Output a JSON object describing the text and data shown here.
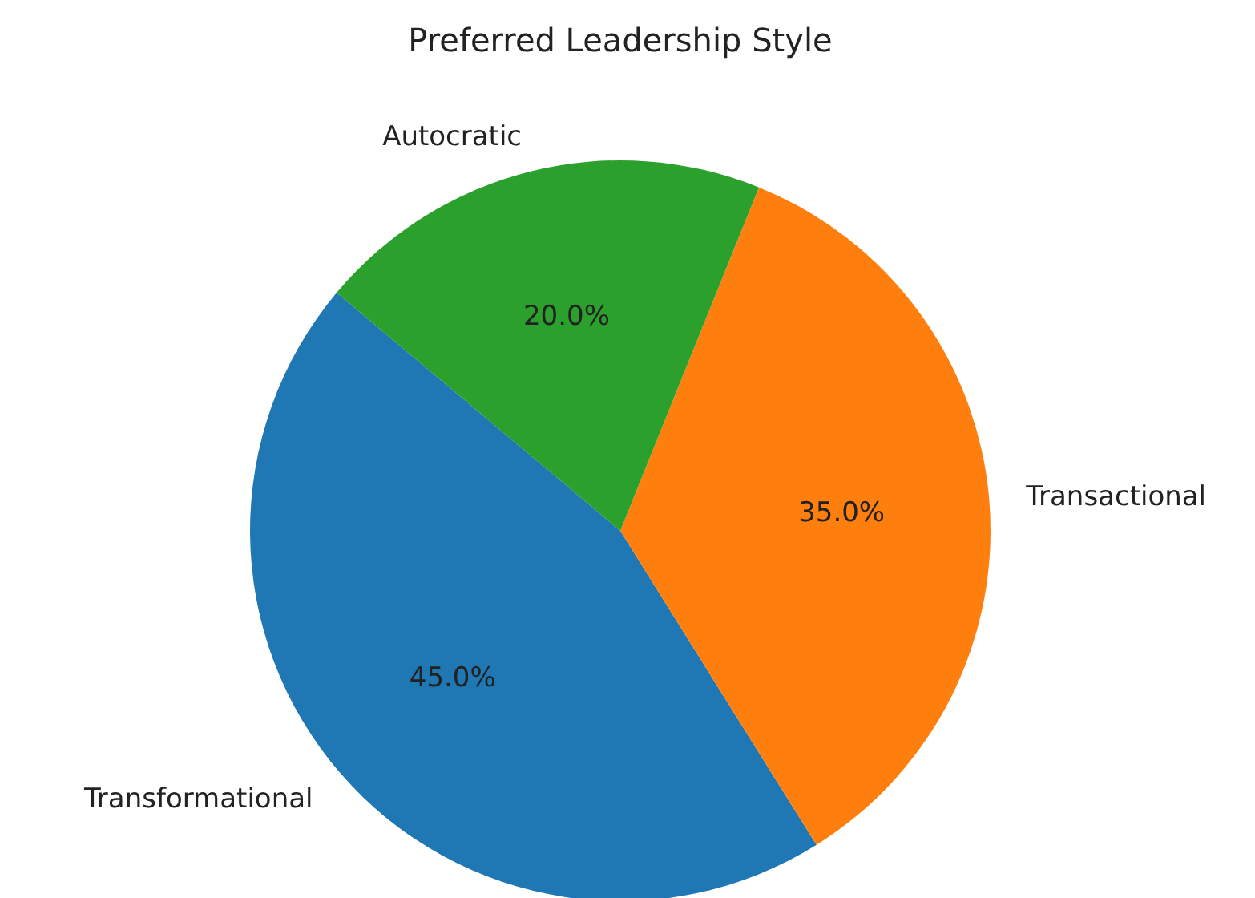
{
  "chart_data": {
    "type": "pie",
    "title": "Preferred Leadership Style",
    "categories": [
      "Transformational",
      "Transactional",
      "Autocratic"
    ],
    "values": [
      45,
      35,
      20
    ],
    "colors": [
      "#1f77b4",
      "#ff7f0e",
      "#2ca02c"
    ],
    "value_labels": [
      "45.0%",
      "35.0%",
      "20.0%"
    ]
  }
}
